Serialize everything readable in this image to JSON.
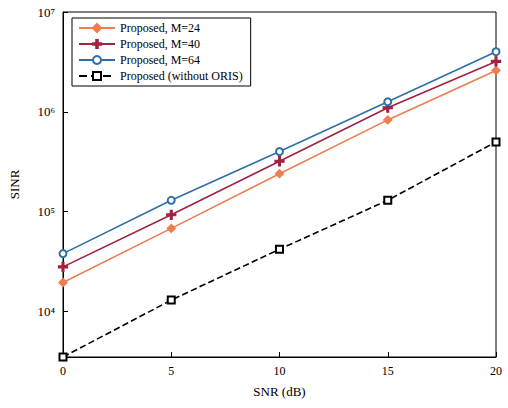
{
  "chart_data": {
    "type": "line",
    "x_label": "SNR (dB)",
    "y_label": "SINR",
    "log": "y",
    "grid": false,
    "legend": "upper left",
    "xlim": [
      0,
      20
    ],
    "xticks": [
      0,
      5,
      10,
      15,
      20
    ],
    "ylim": [
      3500,
      10000000
    ],
    "yticks": [
      {
        "value": 10000,
        "label": "10⁴"
      },
      {
        "value": 100000,
        "label": "10⁵"
      },
      {
        "value": 1000000,
        "label": "10⁶"
      },
      {
        "value": 10000000,
        "label": "10⁷"
      }
    ],
    "x": [
      0,
      5,
      10,
      15,
      20
    ],
    "series": [
      {
        "name": "Proposed, M=24",
        "color": "#ee7d4f",
        "marker": "diamond",
        "line_style": "solid",
        "values": [
          19500,
          68000,
          240000,
          830000,
          2600000
        ]
      },
      {
        "name": "Proposed, M=40",
        "color": "#a1233f",
        "marker": "plus",
        "line_style": "solid",
        "values": [
          28000,
          93000,
          320000,
          1100000,
          3200000
        ]
      },
      {
        "name": "Proposed, M=64",
        "color": "#2f6fa8",
        "marker": "circle",
        "line_style": "solid",
        "values": [
          38000,
          130000,
          400000,
          1260000,
          4000000
        ]
      },
      {
        "name": "Proposed (without ORIS)",
        "color": "#000000",
        "marker": "square",
        "line_style": "dashed",
        "values": [
          3500,
          13000,
          42000,
          130000,
          500000
        ]
      }
    ]
  }
}
